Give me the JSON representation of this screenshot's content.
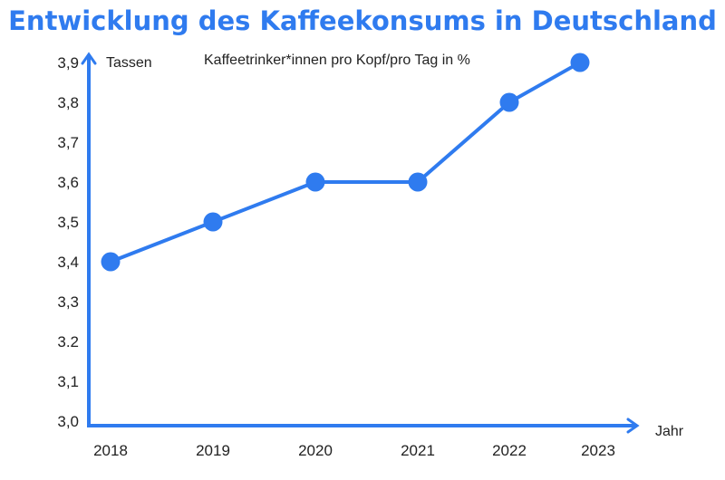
{
  "chart_data": {
    "type": "line",
    "title": "Entwicklung des Kaffeekonsums in Deutschland",
    "subtitle": "Kaffeetrinker*innen pro Kopf/pro Tag in %",
    "xlabel": "Jahr",
    "ylabel": "Tassen",
    "categories": [
      "2018",
      "2019",
      "2020",
      "2021",
      "2022",
      "2023"
    ],
    "values": [
      3.4,
      3.5,
      3.6,
      3.6,
      3.8,
      3.9
    ],
    "ylim": [
      3.0,
      3.9
    ],
    "yticks": [
      3.0,
      3.1,
      3.2,
      3.3,
      3.4,
      3.5,
      3.6,
      3.7,
      3.8,
      3.9
    ],
    "ytick_labels": [
      "3,0",
      "3,1",
      "3.2",
      "3,3",
      "3,4",
      "3,5",
      "3,6",
      "3,7",
      "3,8",
      "3,9"
    ],
    "grid": false,
    "color": "#2f7bef"
  }
}
